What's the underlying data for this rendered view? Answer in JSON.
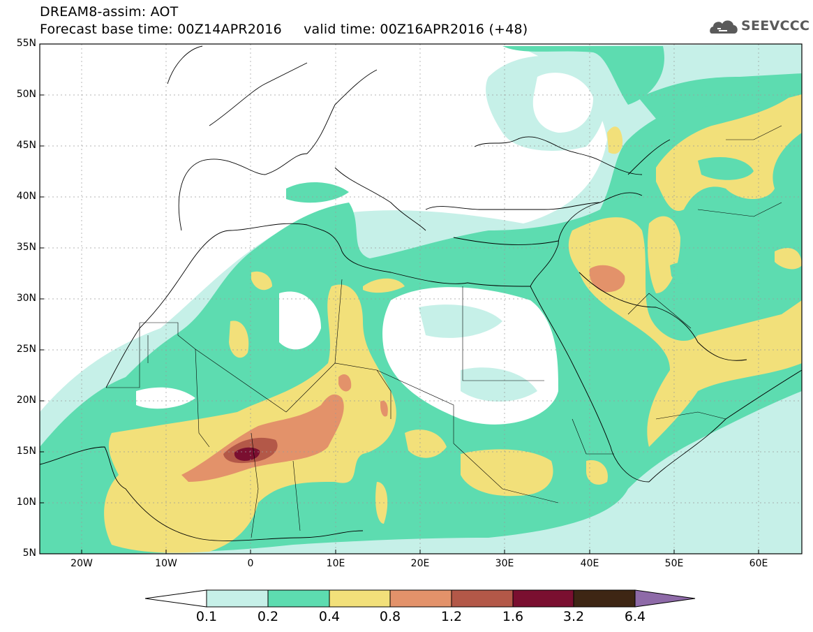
{
  "header": {
    "title_line1": "DREAM8-assim: AOT",
    "title_line2": "Forecast base time: 00Z14APR2016     valid time: 00Z16APR2016 (+48)"
  },
  "logo": {
    "icon": "cloud-logo-icon",
    "text": "SEEVCCC"
  },
  "map": {
    "lat_labels": [
      "55N",
      "50N",
      "45N",
      "40N",
      "35N",
      "30N",
      "25N",
      "20N",
      "15N",
      "10N",
      "5N"
    ],
    "lon_labels": [
      "20W",
      "10W",
      "0",
      "10E",
      "20E",
      "30E",
      "40E",
      "50E",
      "60E"
    ]
  },
  "colorbar": {
    "labels": [
      "0.1",
      "0.2",
      "0.4",
      "0.8",
      "1.2",
      "1.6",
      "3.2",
      "6.4"
    ],
    "colors": [
      "#ffffff",
      "#c6f0e8",
      "#5ddcb0",
      "#f2e07a",
      "#e3926a",
      "#b35848",
      "#7a0f30",
      "#3e2614",
      "#8e6aa8"
    ]
  },
  "colors": {
    "level_0_1": "#c6f0e8",
    "level_0_2": "#5ddcb0",
    "level_0_4": "#f2e07a",
    "level_0_8": "#e3926a",
    "level_1_2": "#b35848",
    "level_1_6": "#7a0f30"
  }
}
